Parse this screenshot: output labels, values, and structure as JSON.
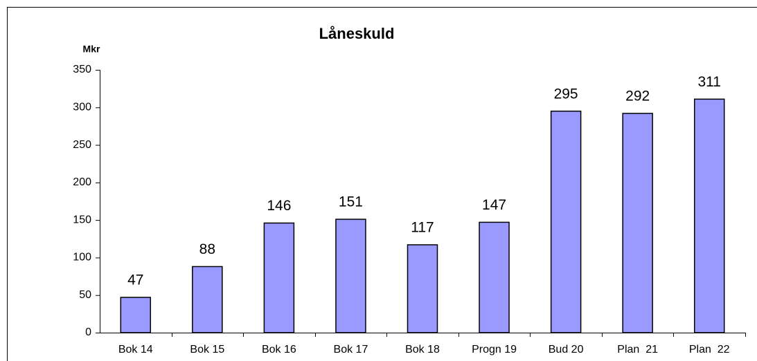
{
  "chart_data": {
    "type": "bar",
    "title": "Låneskuld",
    "ylabel": "Mkr",
    "categories": [
      "Bok 14",
      "Bok 15",
      "Bok 16",
      "Bok 17",
      "Bok 18",
      "Progn 19",
      "Bud 20",
      "Plan  21",
      "Plan  22"
    ],
    "values": [
      47,
      88,
      146,
      151,
      117,
      147,
      295,
      292,
      311
    ],
    "color": "#9999ff",
    "ylim": [
      0,
      350
    ],
    "yticks": [
      0,
      50,
      100,
      150,
      200,
      250,
      300,
      350
    ],
    "grid": false
  }
}
